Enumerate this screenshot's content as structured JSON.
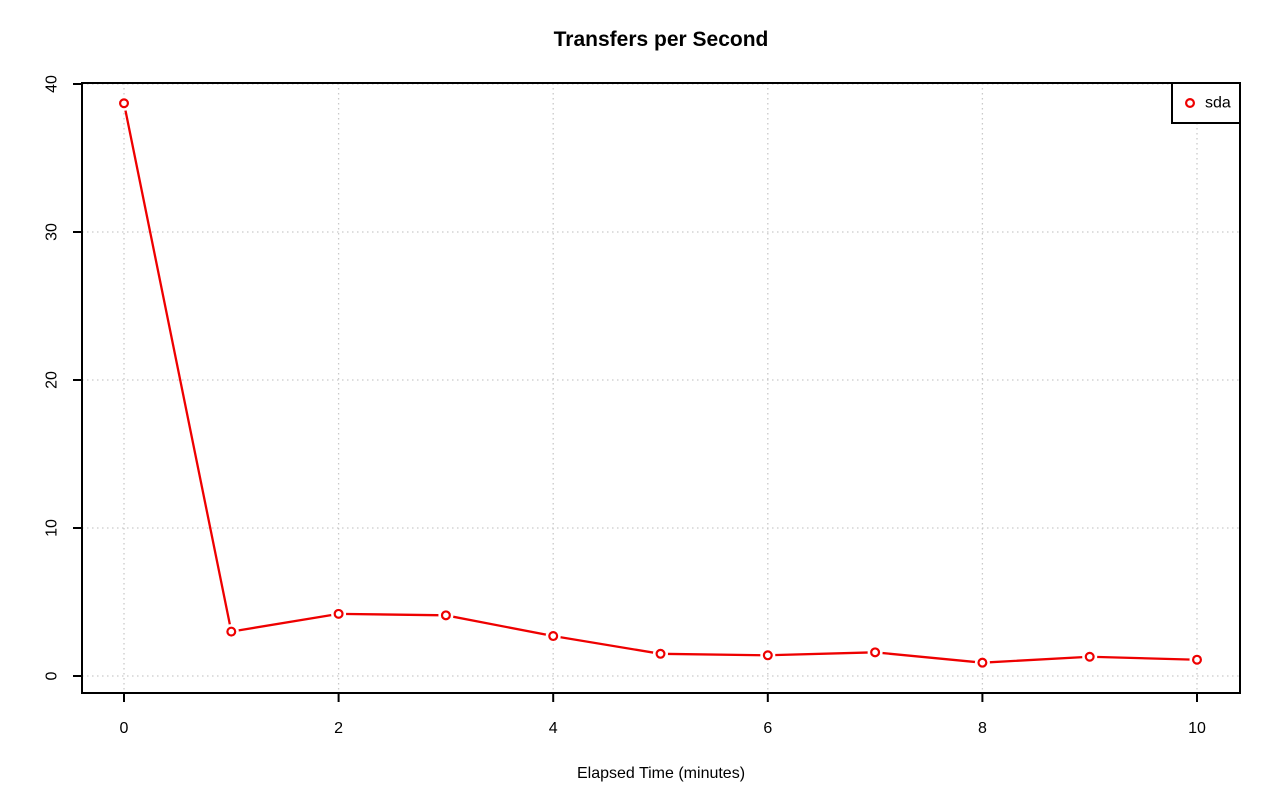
{
  "page": {
    "background": "#ffffff"
  },
  "chart_data": {
    "type": "line",
    "title": "Transfers per Second",
    "xlabel": "Elapsed Time (minutes)",
    "ylabel": "",
    "x": [
      0,
      1,
      2,
      3,
      4,
      5,
      6,
      7,
      8,
      9,
      10
    ],
    "series": [
      {
        "name": "sda",
        "color": "#ee0000",
        "marker": "open-circle",
        "line_style": "solid-with-gaps",
        "values": [
          38.7,
          3.0,
          4.2,
          4.1,
          2.7,
          1.5,
          1.4,
          1.6,
          0.9,
          1.3,
          1.1
        ]
      }
    ],
    "xticks": [
      0,
      2,
      4,
      6,
      8,
      10
    ],
    "yticks": [
      0,
      10,
      20,
      30,
      40
    ],
    "xlim": [
      -0.4,
      10.4
    ],
    "ylim": [
      -1.2,
      40.1
    ],
    "grid": {
      "visible": true,
      "style": "dotted",
      "color": "#c9c9c9"
    },
    "legend": {
      "position": "topright",
      "entries": [
        "sda"
      ]
    },
    "axis_color": "#000000"
  }
}
